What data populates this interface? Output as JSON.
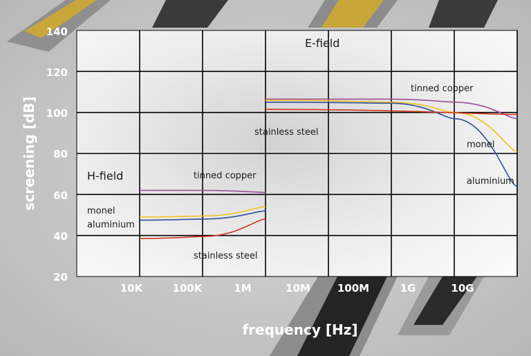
{
  "chart_data": {
    "type": "line",
    "xlabel": "frequency [Hz]",
    "ylabel": "screening [dB]",
    "x_scale": "log",
    "xlim": [
      "1K",
      "10G"
    ],
    "ylim": [
      20,
      140
    ],
    "x_ticks": [
      "10K",
      "100K",
      "1M",
      "10M",
      "100M",
      "1G",
      "10G"
    ],
    "y_ticks": [
      "20",
      "40",
      "60",
      "80",
      "100",
      "120",
      "140"
    ],
    "grid": true,
    "series": [
      {
        "name": "tinned copper",
        "field": "H-field",
        "color": "#9b4f9a",
        "points": [
          [
            10000,
            62
          ],
          [
            100000,
            62
          ],
          [
            1000000,
            61
          ]
        ]
      },
      {
        "name": "monel",
        "field": "H-field",
        "color": "#f2c21b",
        "points": [
          [
            10000,
            49
          ],
          [
            100000,
            49.5
          ],
          [
            1000000,
            54
          ]
        ]
      },
      {
        "name": "aluminium",
        "field": "H-field",
        "color": "#2e4f9c",
        "points": [
          [
            10000,
            47.5
          ],
          [
            100000,
            48
          ],
          [
            1000000,
            52
          ]
        ]
      },
      {
        "name": "stainless steel",
        "field": "H-field",
        "color": "#d0361e",
        "points": [
          [
            10000,
            38.5
          ],
          [
            100000,
            39.5
          ],
          [
            1000000,
            48
          ]
        ]
      },
      {
        "name": "tinned copper",
        "field": "E-field",
        "color": "#9b4f9a",
        "points": [
          [
            1000000,
            106.5
          ],
          [
            100000000,
            106.5
          ],
          [
            1000000000,
            105
          ],
          [
            10000000000,
            97
          ]
        ]
      },
      {
        "name": "monel",
        "field": "E-field",
        "color": "#f2c21b",
        "points": [
          [
            1000000,
            106
          ],
          [
            100000000,
            105
          ],
          [
            1000000000,
            100
          ],
          [
            10000000000,
            81
          ]
        ]
      },
      {
        "name": "aluminium",
        "field": "E-field",
        "color": "#2e4f9c",
        "points": [
          [
            1000000,
            105
          ],
          [
            100000000,
            104.5
          ],
          [
            1000000000,
            97
          ],
          [
            10000000000,
            64
          ]
        ]
      },
      {
        "name": "stainless steel",
        "field": "E-field",
        "color": "#d0361e",
        "points": [
          [
            1000000,
            101.5
          ],
          [
            10000000000,
            99
          ]
        ]
      }
    ],
    "annotations": {
      "e_field": "E-field",
      "h_field": "H-field",
      "e_tinned_copper": "tinned copper",
      "e_stainless_steel": "stainless steel",
      "e_monel": "monel",
      "e_aluminium": "aluminium",
      "h_tinned_copper": "tinned copper",
      "h_monel": "monel",
      "h_aluminium": "aluminium",
      "h_stainless_steel": "stainless steel"
    }
  }
}
